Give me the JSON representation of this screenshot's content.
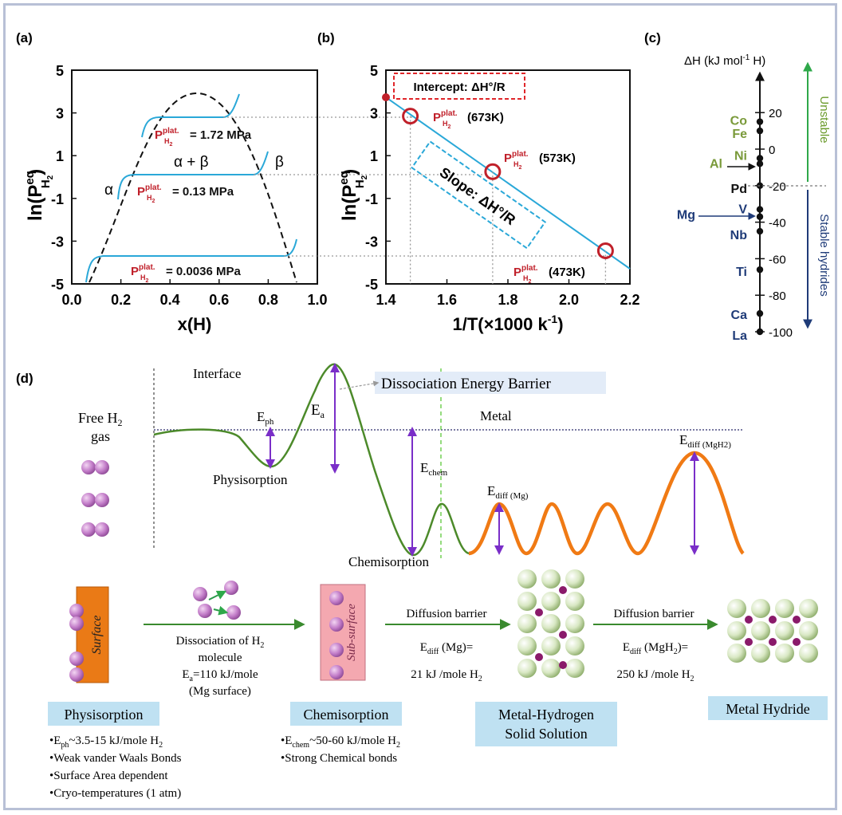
{
  "panels": {
    "a": "(a)",
    "b": "(b)",
    "c": "(c)",
    "d": "(d)"
  },
  "colors": {
    "cyan": "#2aa8d8",
    "red": "#c0202a",
    "green": "#4c8a2a",
    "orange": "#f07a14",
    "purple": "#7a2ec8",
    "navy": "#1f3b78",
    "olive": "#7a9a3a",
    "arrow_green": "#2ea84a"
  },
  "panel_a": {
    "ylabel_main": "ln(P",
    "ylabel_sup": "eq",
    "ylabel_sub": "H",
    "ylabel_sub2": "2",
    "ylabel_end": ")",
    "xlabel": "x(H)",
    "yticks": [
      "5",
      "3",
      "1",
      "-1",
      "-3",
      "-5"
    ],
    "xticks": [
      "0.0",
      "0.2",
      "0.4",
      "0.6",
      "0.8",
      "1.0"
    ],
    "phases": {
      "alpha": "α",
      "alpha_beta": "α + β",
      "beta": "β"
    },
    "plateaus": [
      {
        "label": "P",
        "sup": "plat.",
        "sub": "H",
        "sub2": "2",
        "value": "= 1.72 MPa",
        "ln_p": 2.85
      },
      {
        "label": "P",
        "sup": "plat.",
        "sub": "H",
        "sub2": "2",
        "value": "= 0.13 MPa",
        "ln_p": 0.25
      },
      {
        "label": "P",
        "sup": "plat.",
        "sub": "H",
        "sub2": "2",
        "value": "= 0.0036 MPa",
        "ln_p": -3.45
      }
    ]
  },
  "panel_b": {
    "ylabel_main": "ln(P",
    "ylabel_sup": "eq",
    "ylabel_sub": "H",
    "ylabel_sub2": "2",
    "ylabel_end": ")",
    "xlabel": "1/T(×1000 k",
    "xlabel_sup": "-1",
    "xlabel_end": ")",
    "yticks": [
      "5",
      "3",
      "1",
      "-1",
      "-3",
      "-5"
    ],
    "xticks": [
      "1.4",
      "1.6",
      "1.8",
      "2.0",
      "2.2"
    ],
    "intercept": "Intercept: ΔH°/R",
    "slope": "Slope: ΔH°/R",
    "points": [
      {
        "x": 1.48,
        "y": 2.85,
        "label": "P",
        "sup": "plat.",
        "sub": "H",
        "sub2": "2",
        "temp": "(673K)"
      },
      {
        "x": 1.75,
        "y": 0.25,
        "label": "P",
        "sup": "plat.",
        "sub": "H",
        "sub2": "2",
        "temp": "(573K)"
      },
      {
        "x": 2.12,
        "y": -3.45,
        "label": "P",
        "sup": "plat.",
        "sub": "H",
        "sub2": "2",
        "temp": "(473K)"
      }
    ]
  },
  "panel_c": {
    "title": "ΔH (kJ mol",
    "title_sup": "-1",
    "title_end": " H)",
    "ticks": [
      "20",
      "0",
      "-20",
      "-40",
      "-60",
      "-80",
      "-100"
    ],
    "unstable": "Unstable",
    "stable": "Stable hydrides",
    "elements": [
      {
        "name": "Co",
        "value": 15,
        "color": "olive",
        "side": "left"
      },
      {
        "name": "Fe",
        "value": 10,
        "color": "olive",
        "side": "left"
      },
      {
        "name": "Ni",
        "value": -5,
        "color": "olive",
        "side": "left"
      },
      {
        "name": "Al",
        "value": -8,
        "color": "olive",
        "side": "left"
      },
      {
        "name": "Pd",
        "value": -20,
        "color": "black",
        "side": "left"
      },
      {
        "name": "V",
        "value": -33,
        "color": "navy",
        "side": "left"
      },
      {
        "name": "Mg",
        "value": -37,
        "color": "navy",
        "side": "left"
      },
      {
        "name": "Nb",
        "value": -45,
        "color": "navy",
        "side": "left"
      },
      {
        "name": "Ti",
        "value": -66,
        "color": "navy",
        "side": "left"
      },
      {
        "name": "Ca",
        "value": -90,
        "color": "navy",
        "side": "left"
      },
      {
        "name": "La",
        "value": -100,
        "color": "navy",
        "side": "left"
      }
    ]
  },
  "panel_d": {
    "interface": "Interface",
    "barrier": "Dissociation Energy Barrier",
    "metal": "Metal",
    "free_h2": "Free H",
    "free_h2_sub": "2",
    "gas": "gas",
    "e_ph": "E",
    "e_ph_sub": "ph",
    "e_a": "E",
    "e_a_sub": "a",
    "e_chem": "E",
    "e_chem_sub": "chem",
    "e_diff_mg": "E",
    "e_diff_mg_sub": "diff (Mg)",
    "e_diff_mgh2": "E",
    "e_diff_mgh2_sub": "diff (MgH2)",
    "physisorption_curve": "Physisorption",
    "chemisorption_curve": "Chemisorption",
    "surface": "Surface",
    "sub_surface": "Sub-surface",
    "dissociation_lines": [
      "Dissociation of H",
      "molecule",
      "=110 kJ/mole",
      "(Mg surface)"
    ],
    "diffusion1": {
      "title": "Diffusion barrier",
      "line1": "E",
      "line1_sub": "diff",
      "line1_end": " (Mg)=",
      "line2": "21 kJ /mole H"
    },
    "diffusion2": {
      "title": "Diffusion barrier",
      "line1": "E",
      "line1_sub": "diff",
      "line1_end": " (MgH",
      "line1_end2": ")=",
      "line2": "250 kJ /mole H"
    },
    "stages": [
      "Physisorption",
      "Chemisorption",
      "Metal-Hydrogen",
      "Solid Solution",
      "Metal Hydride"
    ],
    "physi_notes": [
      "•E",
      "~3.5-15 kJ/mole H",
      "•Weak vander Waals Bonds",
      "•Surface Area dependent",
      "•Cryo-temperatures (1 atm)"
    ],
    "chemi_notes": [
      "•E",
      "~50-60 kJ/mole H",
      "•Strong Chemical bonds"
    ]
  }
}
